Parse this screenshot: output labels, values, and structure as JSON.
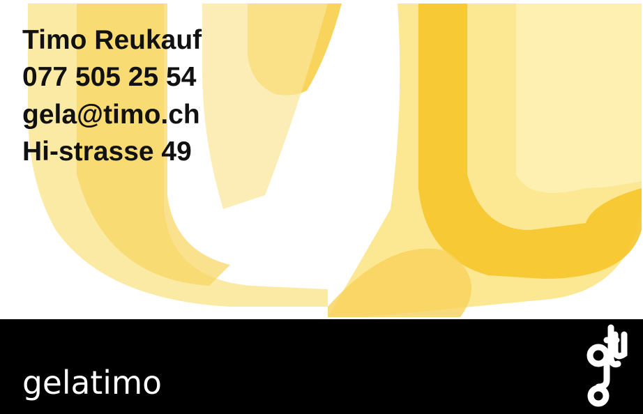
{
  "card": {
    "name": "Timo Reukauf",
    "phone": "077 505 25 54",
    "email": "gela@timo.ch",
    "address": "Hi-strasse 49",
    "logo": "gelatimo"
  }
}
